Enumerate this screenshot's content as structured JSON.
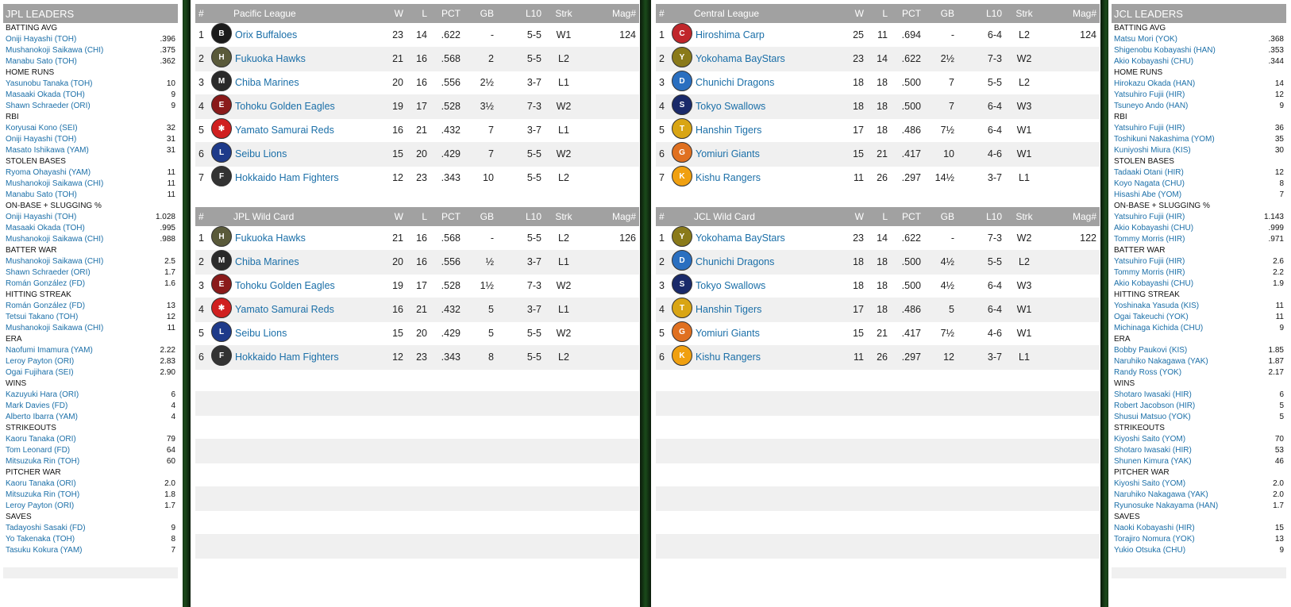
{
  "jpl_leaders": {
    "title": "JPL LEADERS",
    "categories": [
      {
        "name": "BATTING AVG",
        "rows": [
          [
            "Oniji Hayashi (TOH)",
            ".396"
          ],
          [
            "Mushanokoji Saikawa (CHI)",
            ".375"
          ],
          [
            "Manabu Sato (TOH)",
            ".362"
          ]
        ]
      },
      {
        "name": "HOME RUNS",
        "rows": [
          [
            "Yasunobu Tanaka (TOH)",
            "10"
          ],
          [
            "Masaaki Okada (TOH)",
            "9"
          ],
          [
            "Shawn Schraeder (ORI)",
            "9"
          ]
        ]
      },
      {
        "name": "RBI",
        "rows": [
          [
            "Koryusai Kono (SEI)",
            "32"
          ],
          [
            "Oniji Hayashi (TOH)",
            "31"
          ],
          [
            "Masato Ishikawa (YAM)",
            "31"
          ]
        ]
      },
      {
        "name": "STOLEN BASES",
        "rows": [
          [
            "Ryoma Ohayashi (YAM)",
            "11"
          ],
          [
            "Mushanokoji Saikawa (CHI)",
            "11"
          ],
          [
            "Manabu Sato (TOH)",
            "11"
          ]
        ]
      },
      {
        "name": "ON-BASE + SLUGGING %",
        "rows": [
          [
            "Oniji Hayashi (TOH)",
            "1.028"
          ],
          [
            "Masaaki Okada (TOH)",
            ".995"
          ],
          [
            "Mushanokoji Saikawa (CHI)",
            ".988"
          ]
        ]
      },
      {
        "name": "BATTER WAR",
        "rows": [
          [
            "Mushanokoji Saikawa (CHI)",
            "2.5"
          ],
          [
            "Shawn Schraeder (ORI)",
            "1.7"
          ],
          [
            "Román González (FD)",
            "1.6"
          ]
        ]
      },
      {
        "name": "HITTING STREAK",
        "rows": [
          [
            "Román González (FD)",
            "13"
          ],
          [
            "Tetsui Takano (TOH)",
            "12"
          ],
          [
            "Mushanokoji Saikawa (CHI)",
            "11"
          ]
        ]
      },
      {
        "name": "ERA",
        "rows": [
          [
            "Naofumi Imamura (YAM)",
            "2.22"
          ],
          [
            "Leroy Payton (ORI)",
            "2.83"
          ],
          [
            "Ogai Fujihara (SEI)",
            "2.90"
          ]
        ]
      },
      {
        "name": "WINS",
        "rows": [
          [
            "Kazuyuki Hara (ORI)",
            "6"
          ],
          [
            "Mark Davies (FD)",
            "4"
          ],
          [
            "Alberto Ibarra (YAM)",
            "4"
          ]
        ]
      },
      {
        "name": "STRIKEOUTS",
        "rows": [
          [
            "Kaoru Tanaka (ORI)",
            "79"
          ],
          [
            "Tom Leonard (FD)",
            "64"
          ],
          [
            "Mitsuzuka Rin (TOH)",
            "60"
          ]
        ]
      },
      {
        "name": "PITCHER WAR",
        "rows": [
          [
            "Kaoru Tanaka (ORI)",
            "2.0"
          ],
          [
            "Mitsuzuka Rin (TOH)",
            "1.8"
          ],
          [
            "Leroy Payton (ORI)",
            "1.7"
          ]
        ]
      },
      {
        "name": "SAVES",
        "rows": [
          [
            "Tadayoshi Sasaki (FD)",
            "9"
          ],
          [
            "Yo Takenaka (TOH)",
            "8"
          ],
          [
            "Tasuku Kokura (YAM)",
            "7"
          ]
        ]
      }
    ]
  },
  "jcl_leaders": {
    "title": "JCL LEADERS",
    "categories": [
      {
        "name": "BATTING AVG",
        "rows": [
          [
            "Matsu Mori (YOK)",
            ".368"
          ],
          [
            "Shigenobu Kobayashi (HAN)",
            ".353"
          ],
          [
            "Akio Kobayashi (CHU)",
            ".344"
          ]
        ]
      },
      {
        "name": "HOME RUNS",
        "rows": [
          [
            "Hirokazu Okada (HAN)",
            "14"
          ],
          [
            "Yatsuhiro Fujii (HIR)",
            "12"
          ],
          [
            "Tsuneyo Ando (HAN)",
            "9"
          ]
        ]
      },
      {
        "name": "RBI",
        "rows": [
          [
            "Yatsuhiro Fujii (HIR)",
            "36"
          ],
          [
            "Toshikuni Nakashima (YOM)",
            "35"
          ],
          [
            "Kuniyoshi Miura (KIS)",
            "30"
          ]
        ]
      },
      {
        "name": "STOLEN BASES",
        "rows": [
          [
            "Tadaaki Otani (HIR)",
            "12"
          ],
          [
            "Koyo Nagata (CHU)",
            "8"
          ],
          [
            "Hisashi Abe (YOM)",
            "7"
          ]
        ]
      },
      {
        "name": "ON-BASE + SLUGGING %",
        "rows": [
          [
            "Yatsuhiro Fujii (HIR)",
            "1.143"
          ],
          [
            "Akio Kobayashi (CHU)",
            ".999"
          ],
          [
            "Tommy Morris (HIR)",
            ".971"
          ]
        ]
      },
      {
        "name": "BATTER WAR",
        "rows": [
          [
            "Yatsuhiro Fujii (HIR)",
            "2.6"
          ],
          [
            "Tommy Morris (HIR)",
            "2.2"
          ],
          [
            "Akio Kobayashi (CHU)",
            "1.9"
          ]
        ]
      },
      {
        "name": "HITTING STREAK",
        "rows": [
          [
            "Yoshinaka Yasuda (KIS)",
            "11"
          ],
          [
            "Ogai Takeuchi (YOK)",
            "11"
          ],
          [
            "Michinaga Kichida (CHU)",
            "9"
          ]
        ]
      },
      {
        "name": "ERA",
        "rows": [
          [
            "Bobby Paukovi (KIS)",
            "1.85"
          ],
          [
            "Naruhiko Nakagawa (YAK)",
            "1.87"
          ],
          [
            "Randy Ross (YOK)",
            "2.17"
          ]
        ]
      },
      {
        "name": "WINS",
        "rows": [
          [
            "Shotaro Iwasaki (HIR)",
            "6"
          ],
          [
            "Robert Jacobson (HIR)",
            "5"
          ],
          [
            "Shusui Matsuo (YOK)",
            "5"
          ]
        ]
      },
      {
        "name": "STRIKEOUTS",
        "rows": [
          [
            "Kiyoshi Saito (YOM)",
            "70"
          ],
          [
            "Shotaro Iwasaki (HIR)",
            "53"
          ],
          [
            "Shunen Kimura (YAK)",
            "46"
          ]
        ]
      },
      {
        "name": "PITCHER WAR",
        "rows": [
          [
            "Kiyoshi Saito (YOM)",
            "2.0"
          ],
          [
            "Naruhiko Nakagawa (YAK)",
            "2.0"
          ],
          [
            "Ryunosuke Nakayama (HAN)",
            "1.7"
          ]
        ]
      },
      {
        "name": "SAVES",
        "rows": [
          [
            "Naoki Kobayashi (HIR)",
            "15"
          ],
          [
            "Torajiro Nomura (YOK)",
            "13"
          ],
          [
            "Yukio Otsuka (CHU)",
            "9"
          ]
        ]
      }
    ]
  },
  "columns": {
    "rank": "#",
    "w": "W",
    "l": "L",
    "pct": "PCT",
    "gb": "GB",
    "l10": "L10",
    "strk": "Strk",
    "mag": "Mag#"
  },
  "pacific": {
    "title": "Pacific League",
    "rows": [
      {
        "rank": "1",
        "team": "Orix Buffaloes",
        "w": "23",
        "l": "14",
        "pct": ".622",
        "gb": "-",
        "l10": "5-5",
        "strk": "W1",
        "mag": "124",
        "logo_color": "#1b1b1b",
        "logo_text": "B"
      },
      {
        "rank": "2",
        "team": "Fukuoka Hawks",
        "w": "21",
        "l": "16",
        "pct": ".568",
        "gb": "2",
        "l10": "5-5",
        "strk": "L2",
        "mag": "",
        "logo_color": "#5a5a3a",
        "logo_text": "H"
      },
      {
        "rank": "3",
        "team": "Chiba Marines",
        "w": "20",
        "l": "16",
        "pct": ".556",
        "gb": "2½",
        "l10": "3-7",
        "strk": "L1",
        "mag": "",
        "logo_color": "#2a2a2a",
        "logo_text": "M"
      },
      {
        "rank": "4",
        "team": "Tohoku Golden Eagles",
        "w": "19",
        "l": "17",
        "pct": ".528",
        "gb": "3½",
        "l10": "7-3",
        "strk": "W2",
        "mag": "",
        "logo_color": "#8a1a1a",
        "logo_text": "E"
      },
      {
        "rank": "5",
        "team": "Yamato Samurai Reds",
        "w": "16",
        "l": "21",
        "pct": ".432",
        "gb": "7",
        "l10": "3-7",
        "strk": "L1",
        "mag": "",
        "logo_color": "#d02020",
        "logo_text": "✱"
      },
      {
        "rank": "6",
        "team": "Seibu Lions",
        "w": "15",
        "l": "20",
        "pct": ".429",
        "gb": "7",
        "l10": "5-5",
        "strk": "W2",
        "mag": "",
        "logo_color": "#1e3a8a",
        "logo_text": "L"
      },
      {
        "rank": "7",
        "team": "Hokkaido Ham Fighters",
        "w": "12",
        "l": "23",
        "pct": ".343",
        "gb": "10",
        "l10": "5-5",
        "strk": "L2",
        "mag": "",
        "logo_color": "#333333",
        "logo_text": "F"
      }
    ]
  },
  "jpl_wild": {
    "title": "JPL  Wild Card",
    "rows": [
      {
        "rank": "1",
        "team": "Fukuoka Hawks",
        "w": "21",
        "l": "16",
        "pct": ".568",
        "gb": "-",
        "l10": "5-5",
        "strk": "L2",
        "mag": "126",
        "logo_color": "#5a5a3a",
        "logo_text": "H"
      },
      {
        "rank": "2",
        "team": "Chiba Marines",
        "w": "20",
        "l": "16",
        "pct": ".556",
        "gb": "½",
        "l10": "3-7",
        "strk": "L1",
        "mag": "",
        "logo_color": "#2a2a2a",
        "logo_text": "M"
      },
      {
        "rank": "3",
        "team": "Tohoku Golden Eagles",
        "w": "19",
        "l": "17",
        "pct": ".528",
        "gb": "1½",
        "l10": "7-3",
        "strk": "W2",
        "mag": "",
        "logo_color": "#8a1a1a",
        "logo_text": "E"
      },
      {
        "rank": "4",
        "team": "Yamato Samurai Reds",
        "w": "16",
        "l": "21",
        "pct": ".432",
        "gb": "5",
        "l10": "3-7",
        "strk": "L1",
        "mag": "",
        "logo_color": "#d02020",
        "logo_text": "✱"
      },
      {
        "rank": "5",
        "team": "Seibu Lions",
        "w": "15",
        "l": "20",
        "pct": ".429",
        "gb": "5",
        "l10": "5-5",
        "strk": "W2",
        "mag": "",
        "logo_color": "#1e3a8a",
        "logo_text": "L"
      },
      {
        "rank": "6",
        "team": "Hokkaido Ham Fighters",
        "w": "12",
        "l": "23",
        "pct": ".343",
        "gb": "8",
        "l10": "5-5",
        "strk": "L2",
        "mag": "",
        "logo_color": "#333333",
        "logo_text": "F"
      }
    ]
  },
  "central": {
    "title": "Central League",
    "rows": [
      {
        "rank": "1",
        "team": "Hiroshima Carp",
        "w": "25",
        "l": "11",
        "pct": ".694",
        "gb": "-",
        "l10": "6-4",
        "strk": "L2",
        "mag": "124",
        "logo_color": "#c0262b",
        "logo_text": "C"
      },
      {
        "rank": "2",
        "team": "Yokohama BayStars",
        "w": "23",
        "l": "14",
        "pct": ".622",
        "gb": "2½",
        "l10": "7-3",
        "strk": "W2",
        "mag": "",
        "logo_color": "#8a7a1a",
        "logo_text": "Y"
      },
      {
        "rank": "3",
        "team": "Chunichi Dragons",
        "w": "18",
        "l": "18",
        "pct": ".500",
        "gb": "7",
        "l10": "5-5",
        "strk": "L2",
        "mag": "",
        "logo_color": "#2a6fc0",
        "logo_text": "D"
      },
      {
        "rank": "4",
        "team": "Tokyo Swallows",
        "w": "18",
        "l": "18",
        "pct": ".500",
        "gb": "7",
        "l10": "6-4",
        "strk": "W3",
        "mag": "",
        "logo_color": "#1a2a6a",
        "logo_text": "S"
      },
      {
        "rank": "5",
        "team": "Hanshin Tigers",
        "w": "17",
        "l": "18",
        "pct": ".486",
        "gb": "7½",
        "l10": "6-4",
        "strk": "W1",
        "mag": "",
        "logo_color": "#d9a514",
        "logo_text": "T"
      },
      {
        "rank": "6",
        "team": "Yomiuri Giants",
        "w": "15",
        "l": "21",
        "pct": ".417",
        "gb": "10",
        "l10": "4-6",
        "strk": "W1",
        "mag": "",
        "logo_color": "#e07020",
        "logo_text": "G"
      },
      {
        "rank": "7",
        "team": "Kishu Rangers",
        "w": "11",
        "l": "26",
        "pct": ".297",
        "gb": "14½",
        "l10": "3-7",
        "strk": "L1",
        "mag": "",
        "logo_color": "#f0a010",
        "logo_text": "K"
      }
    ]
  },
  "jcl_wild": {
    "title": "JCL  Wild Card",
    "rows": [
      {
        "rank": "1",
        "team": "Yokohama BayStars",
        "w": "23",
        "l": "14",
        "pct": ".622",
        "gb": "-",
        "l10": "7-3",
        "strk": "W2",
        "mag": "122",
        "logo_color": "#8a7a1a",
        "logo_text": "Y"
      },
      {
        "rank": "2",
        "team": "Chunichi Dragons",
        "w": "18",
        "l": "18",
        "pct": ".500",
        "gb": "4½",
        "l10": "5-5",
        "strk": "L2",
        "mag": "",
        "logo_color": "#2a6fc0",
        "logo_text": "D"
      },
      {
        "rank": "3",
        "team": "Tokyo Swallows",
        "w": "18",
        "l": "18",
        "pct": ".500",
        "gb": "4½",
        "l10": "6-4",
        "strk": "W3",
        "mag": "",
        "logo_color": "#1a2a6a",
        "logo_text": "S"
      },
      {
        "rank": "4",
        "team": "Hanshin Tigers",
        "w": "17",
        "l": "18",
        "pct": ".486",
        "gb": "5",
        "l10": "6-4",
        "strk": "W1",
        "mag": "",
        "logo_color": "#d9a514",
        "logo_text": "T"
      },
      {
        "rank": "5",
        "team": "Yomiuri Giants",
        "w": "15",
        "l": "21",
        "pct": ".417",
        "gb": "7½",
        "l10": "4-6",
        "strk": "W1",
        "mag": "",
        "logo_color": "#e07020",
        "logo_text": "G"
      },
      {
        "rank": "6",
        "team": "Kishu Rangers",
        "w": "11",
        "l": "26",
        "pct": ".297",
        "gb": "12",
        "l10": "3-7",
        "strk": "L1",
        "mag": "",
        "logo_color": "#f0a010",
        "logo_text": "K"
      }
    ]
  }
}
